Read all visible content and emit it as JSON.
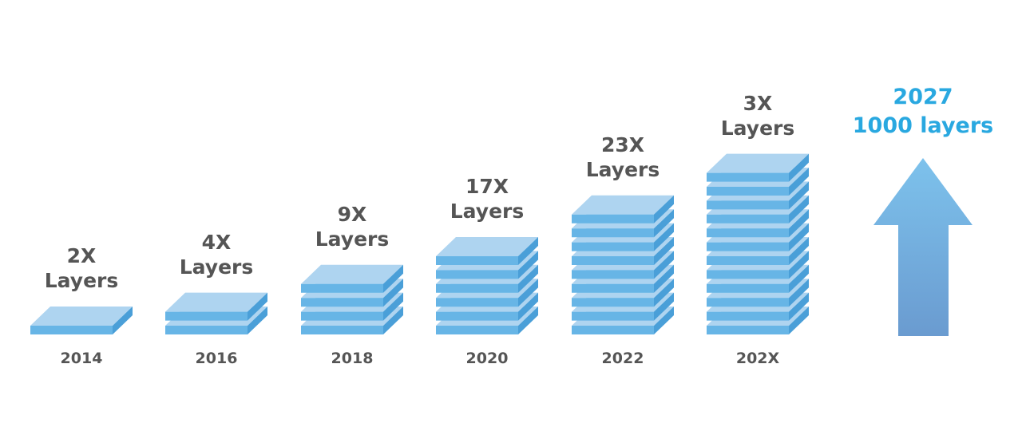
{
  "colors": {
    "slab_top": "#aed4f0",
    "slab_front": "#67b5e6",
    "slab_side": "#4a9fd8",
    "text": "#555555",
    "accent": "#29a8e0",
    "arrow_top": "#7dc2ec",
    "arrow_bottom": "#6a9bd0"
  },
  "stacks": [
    {
      "line1": "2X",
      "line2": "Layers",
      "year": "2014",
      "slabs": 1
    },
    {
      "line1": "4X",
      "line2": "Layers",
      "year": "2016",
      "slabs": 2
    },
    {
      "line1": "9X",
      "line2": "Layers",
      "year": "2018",
      "slabs": 4
    },
    {
      "line1": "17X",
      "line2": "Layers",
      "year": "2020",
      "slabs": 6
    },
    {
      "line1": "23X",
      "line2": "Layers",
      "year": "2022",
      "slabs": 9
    },
    {
      "line1": "3X",
      "line2": "Layers",
      "year": "202X",
      "slabs": 12
    }
  ],
  "future": {
    "line1": "2027",
    "line2": "1000 layers",
    "icon": "up-arrow-icon"
  }
}
